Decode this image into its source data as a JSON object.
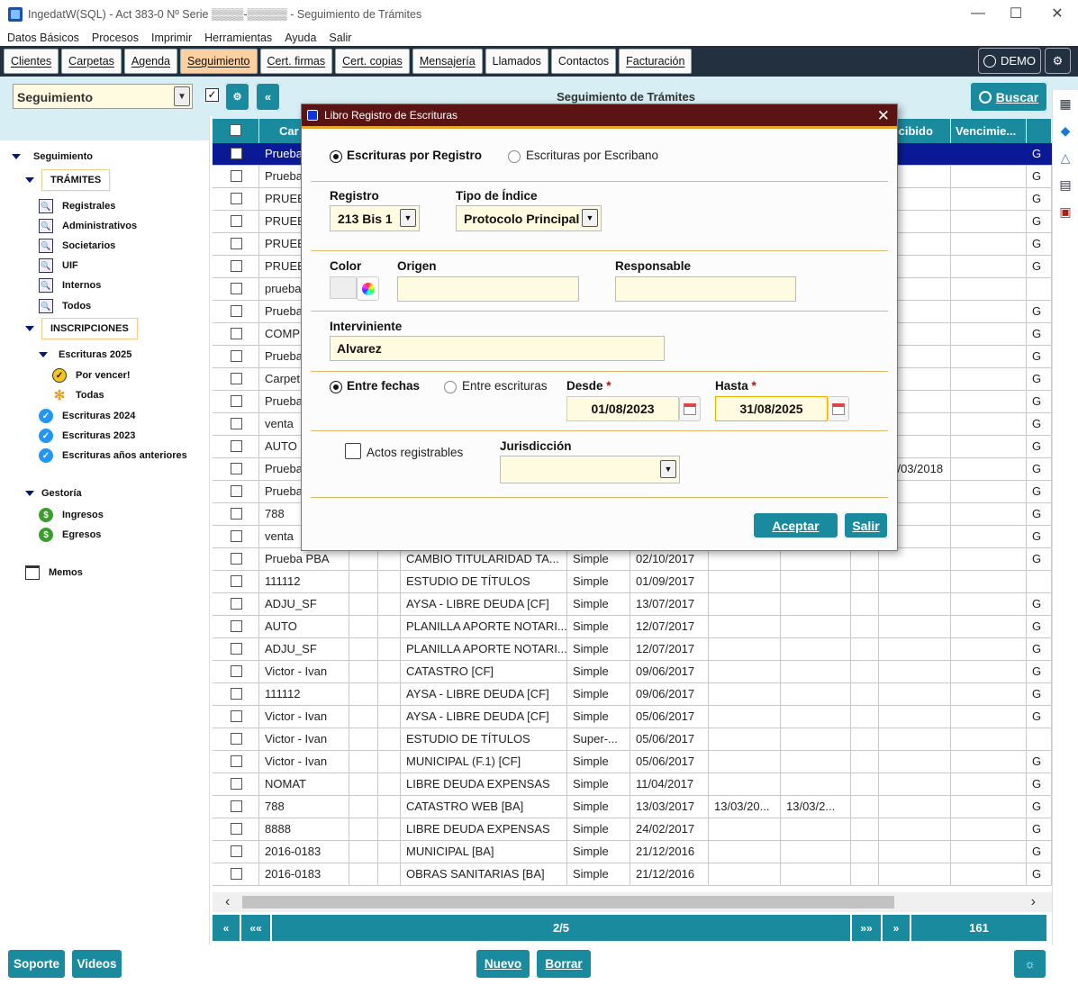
{
  "window": {
    "title": "IngedatW(SQL) - Act 383-0 Nº Serie  ▒▒▒▒-▒▒▒▒▒  - Seguimiento de Trámites"
  },
  "menu": [
    "Datos Básicos",
    "Procesos",
    "Imprimir",
    "Herramientas",
    "Ayuda",
    "Salir"
  ],
  "tabs": [
    {
      "label": "Clientes"
    },
    {
      "label": "Carpetas"
    },
    {
      "label": "Agenda"
    },
    {
      "label": "Seguimiento",
      "active": true
    },
    {
      "label": "Cert. firmas"
    },
    {
      "label": "Cert. copias"
    },
    {
      "label": "Mensajería"
    },
    {
      "label": "Llamados"
    },
    {
      "label": "Contactos"
    },
    {
      "label": "Facturación"
    }
  ],
  "user": {
    "name": "DEMO"
  },
  "toolbar": {
    "selector_value": "Seguimiento",
    "title": "Seguimiento de Trámites",
    "buscar_label": "Buscar",
    "collapse_label": "«",
    "gear_label": "⚙",
    "checkbox_mark": "✓"
  },
  "sidebar": {
    "root": "Seguimiento",
    "tramites": {
      "label": "TRÁMITES",
      "items": [
        "Registrales",
        "Administrativos",
        "Societarios",
        "UIF",
        "Internos",
        "Todos"
      ]
    },
    "inscripciones": {
      "label": "INSCRIPCIONES",
      "escrituras_2025": "Escrituras 2025",
      "por_vencer": "Por vencer!",
      "todas": "Todas",
      "others": [
        "Escrituras 2024",
        "Escrituras 2023",
        "Escrituras años anteriores"
      ]
    },
    "gestoria": {
      "label": "Gestoría",
      "items": [
        "Ingresos",
        "Egresos"
      ]
    },
    "memos": "Memos"
  },
  "grid": {
    "headers": [
      "Car",
      "Recibido",
      "Vencimie..."
    ],
    "rows": [
      {
        "c": "Prueba",
        "d": "",
        "t": "",
        "f": "",
        "v": "",
        "g": "G"
      },
      {
        "c": "Prueba",
        "d": "",
        "t": "",
        "f": "",
        "v": "",
        "g": "G"
      },
      {
        "c": "PRUEB",
        "d": "",
        "t": "",
        "f": "",
        "v": "",
        "g": "G"
      },
      {
        "c": "PRUEB",
        "d": "",
        "t": "",
        "f": "",
        "v": "",
        "g": "G"
      },
      {
        "c": "PRUEB",
        "d": "",
        "t": "",
        "f": "",
        "v": "",
        "g": "G"
      },
      {
        "c": "PRUEB",
        "d": "",
        "t": "",
        "f": "",
        "v": "",
        "g": "G"
      },
      {
        "c": "prueba",
        "d": "",
        "t": "",
        "f": "",
        "v": "",
        "g": ""
      },
      {
        "c": "Prueba",
        "d": "",
        "t": "",
        "f": "",
        "v": "",
        "g": "G"
      },
      {
        "c": "COMPR",
        "d": "",
        "t": "",
        "f": "",
        "v": "",
        "g": "G"
      },
      {
        "c": "Prueba",
        "d": "",
        "t": "",
        "f": "",
        "v": "",
        "g": "G"
      },
      {
        "c": "Carpet",
        "d": "",
        "t": "",
        "f": "",
        "v": "",
        "g": "G"
      },
      {
        "c": "Prueba",
        "d": "",
        "t": "",
        "f": "",
        "v": "",
        "g": "G"
      },
      {
        "c": "venta",
        "d": "",
        "t": "",
        "f": "",
        "v": "",
        "g": "G"
      },
      {
        "c": "AUTO",
        "d": "",
        "t": "",
        "f": "",
        "v": "",
        "g": "G"
      },
      {
        "c": "Prueba",
        "d": "",
        "t": "",
        "f": "",
        "v": "30/03/2018",
        "g": "G"
      },
      {
        "c": "Prueba",
        "d": "",
        "t": "",
        "f": "",
        "v": "",
        "g": "G"
      },
      {
        "c": "788",
        "d": "",
        "t": "",
        "f": "",
        "v": "",
        "g": "G"
      },
      {
        "c": "venta",
        "d": "",
        "t": "",
        "f": "",
        "v": "",
        "g": "G"
      },
      {
        "c": "Prueba PBA",
        "d": "CAMBIO TITULARIDAD TA...",
        "t": "Simple",
        "f": "02/10/2017",
        "v": "",
        "g": "G"
      },
      {
        "c": "111112",
        "d": "ESTUDIO DE TÍTULOS",
        "t": "Simple",
        "f": "01/09/2017",
        "v": "",
        "g": ""
      },
      {
        "c": "ADJU_SF",
        "d": "AYSA - LIBRE DEUDA [CF]",
        "t": "Simple",
        "f": "13/07/2017",
        "v": "",
        "g": "G"
      },
      {
        "c": "AUTO",
        "d": "PLANILLA APORTE NOTARI...",
        "t": "Simple",
        "f": "12/07/2017",
        "v": "",
        "g": "G"
      },
      {
        "c": "ADJU_SF",
        "d": "PLANILLA APORTE NOTARI...",
        "t": "Simple",
        "f": "12/07/2017",
        "v": "",
        "g": "G"
      },
      {
        "c": "Victor - Ivan",
        "d": "CATASTRO [CF]",
        "t": "Simple",
        "f": "09/06/2017",
        "v": "",
        "g": "G"
      },
      {
        "c": "111112",
        "d": "AYSA - LIBRE DEUDA [CF]",
        "t": "Simple",
        "f": "09/06/2017",
        "v": "",
        "g": "G"
      },
      {
        "c": "Victor - Ivan",
        "d": "AYSA - LIBRE DEUDA [CF]",
        "t": "Simple",
        "f": "05/06/2017",
        "v": "",
        "g": "G"
      },
      {
        "c": "Victor - Ivan",
        "d": "ESTUDIO DE TÍTULOS",
        "t": "Super-...",
        "f": "05/06/2017",
        "v": "",
        "g": ""
      },
      {
        "c": "Victor - Ivan",
        "d": "MUNICIPAL (F.1) [CF]",
        "t": "Simple",
        "f": "05/06/2017",
        "v": "",
        "g": "G"
      },
      {
        "c": "NOMAT",
        "d": "LIBRE DEUDA EXPENSAS",
        "t": "Simple",
        "f": "11/04/2017",
        "v": "",
        "g": "G"
      },
      {
        "c": "788",
        "d": "CATASTRO WEB [BA]",
        "t": "Simple",
        "f": "13/03/2017",
        "e1": "13/03/20...",
        "e2": "13/03/2...",
        "v": "",
        "g": "G"
      },
      {
        "c": "8888",
        "d": "LIBRE DEUDA EXPENSAS",
        "t": "Simple",
        "f": "24/02/2017",
        "v": "",
        "g": "G"
      },
      {
        "c": "2016-0183",
        "d": "MUNICIPAL [BA]",
        "t": "Simple",
        "f": "21/12/2016",
        "v": "",
        "g": "G"
      },
      {
        "c": "2016-0183",
        "d": "OBRAS SANITARIAS [BA]",
        "t": "Simple",
        "f": "21/12/2016",
        "v": "",
        "g": "G"
      }
    ]
  },
  "pager": {
    "first": "«",
    "prev_block": "««",
    "page": "2/5",
    "next_block": "»»",
    "next": "»",
    "total": "161"
  },
  "bottom": {
    "soporte": "Soporte",
    "videos": "Videos",
    "nuevo": "Nuevo",
    "borrar": "Borrar"
  },
  "dialog": {
    "title": "Libro Registro de Escrituras",
    "radio_registro": "Escrituras por Registro",
    "radio_escribano": "Escrituras por Escribano",
    "registro_label": "Registro",
    "registro_value": "213 Bis 1",
    "tipo_label": "Tipo de Índice",
    "tipo_value": "Protocolo Principal",
    "color_label": "Color",
    "origen_label": "Origen",
    "origen_value": "",
    "responsable_label": "Responsable",
    "responsable_value": "",
    "interviniente_label": "Interviniente",
    "interviniente_value": "Alvarez",
    "entre_fechas": "Entre fechas",
    "entre_escrituras": "Entre escrituras",
    "desde_label": "Desde",
    "desde_value": "01/08/2023",
    "hasta_label": "Hasta",
    "hasta_value": "31/08/2025",
    "required_mark": "*",
    "actos_label": "Actos registrables",
    "jurisdiccion_label": "Jurisdicción",
    "jurisdiccion_value": "",
    "aceptar": "Aceptar",
    "salir": "Salir"
  }
}
